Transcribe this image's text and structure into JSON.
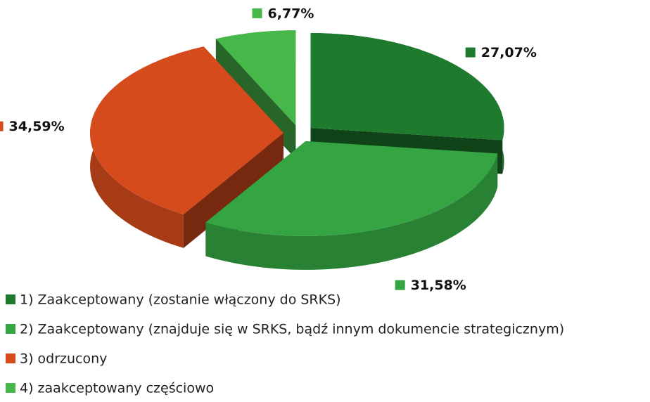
{
  "chart_data": {
    "type": "pie",
    "view": "3d",
    "exploded": true,
    "categories": [
      "1) Zaakceptowany (zostanie włączony do SRKS)",
      "2) Zaakceptowany (znajduje się w SRKS, bądź innym dokumencie strategicznym)",
      "3) odrzucony",
      "4) zaakceptowany częściowo"
    ],
    "values": [
      27.07,
      31.58,
      34.59,
      6.77
    ],
    "value_labels": [
      "27,07%",
      "31,58%",
      "34,59%",
      "6,77%"
    ],
    "colors": [
      "#1e7a2c",
      "#35a543",
      "#d64b1c",
      "#46b84a"
    ],
    "legend": "bottom-left"
  }
}
